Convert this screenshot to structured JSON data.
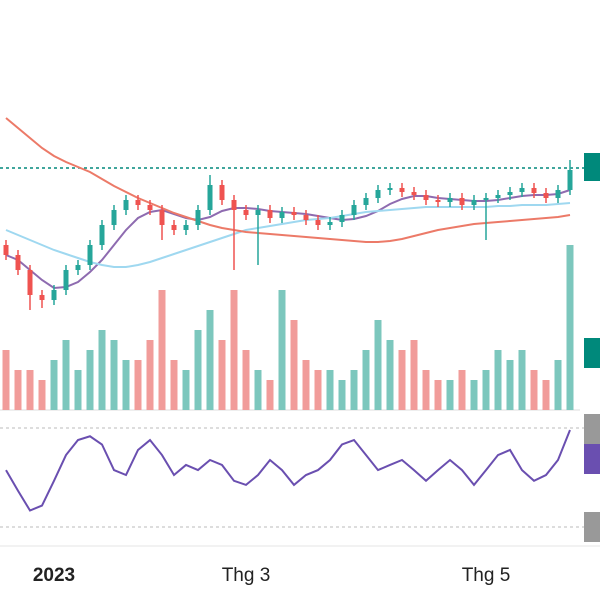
{
  "chart_data": {
    "type": "candlestick",
    "categories": [
      null,
      null,
      null,
      null,
      "2023",
      null,
      null,
      null,
      null,
      null,
      null,
      null,
      null,
      null,
      null,
      null,
      null,
      null,
      null,
      null,
      "Thg 3",
      null,
      null,
      null,
      null,
      null,
      null,
      null,
      null,
      null,
      null,
      null,
      null,
      null,
      null,
      null,
      null,
      null,
      null,
      null,
      "Thg 5",
      null,
      null,
      null,
      null,
      null,
      null,
      null
    ],
    "open": [
      15.5,
      14.5,
      13,
      10.5,
      10,
      11,
      13,
      13.5,
      15.5,
      17.5,
      19,
      20,
      19.5,
      19,
      17.5,
      17,
      17.5,
      19,
      21.5,
      20,
      19,
      18.5,
      19,
      18.2,
      18.8,
      18.5,
      18,
      17.5,
      17.8,
      18.5,
      19.5,
      20.2,
      21,
      21.2,
      20.8,
      20.5,
      20,
      19.8,
      20.2,
      19.5,
      20,
      20.2,
      20.5,
      20.8,
      21.2,
      20.7,
      20.2,
      21
    ],
    "high": [
      16,
      15,
      13.5,
      11,
      11.5,
      13.5,
      14,
      16,
      18,
      19.5,
      20.5,
      20.5,
      20,
      19.5,
      18,
      18,
      19.5,
      22.5,
      22,
      20.5,
      19.5,
      19.5,
      19.5,
      19.3,
      19.3,
      19,
      18.5,
      18.3,
      19,
      20,
      20.7,
      21.5,
      21.7,
      21.7,
      21.3,
      21,
      20.5,
      20.7,
      20.7,
      20.5,
      20.7,
      21,
      21.3,
      21.7,
      21.7,
      21.2,
      21.5,
      24
    ],
    "low": [
      14,
      12.5,
      9,
      9.2,
      9.5,
      10.5,
      12.5,
      13,
      15,
      17,
      18.5,
      19,
      18.5,
      16,
      16.5,
      16.5,
      17,
      18.5,
      19.5,
      13,
      18,
      13.5,
      17.7,
      17.7,
      18,
      17.5,
      17,
      17,
      17.3,
      18,
      19,
      19.7,
      20.5,
      20.3,
      20,
      19.5,
      19.3,
      19.3,
      19,
      19,
      16,
      19.7,
      20,
      20.3,
      20.2,
      19.7,
      19.7,
      20.5
    ],
    "close": [
      14.5,
      13,
      10.5,
      10,
      11,
      13,
      13.5,
      15.5,
      17.5,
      19,
      20,
      19.5,
      19,
      17.5,
      17,
      17.5,
      19,
      21.5,
      20,
      19,
      18.5,
      19,
      18.2,
      18.8,
      18.5,
      18,
      17.5,
      17.8,
      18.5,
      19.5,
      20.2,
      21,
      21.2,
      20.8,
      20.5,
      20,
      19.8,
      20.2,
      19.5,
      20,
      20.2,
      20.5,
      20.8,
      21.2,
      20.7,
      20.2,
      21,
      23
    ],
    "up_color": "#26a69a",
    "down_color": "#ef5350",
    "ylim": [
      0,
      34
    ],
    "price_line": 23.2,
    "price_line_color": "#00897b",
    "series": [
      {
        "color": "#8e6bb0",
        "values": [
          14.5,
          14,
          13,
          12,
          11.2,
          11.3,
          11.8,
          12.8,
          14,
          15.5,
          17,
          18.2,
          18.8,
          19,
          18.6,
          18.2,
          18,
          18.3,
          18.9,
          19.2,
          19.2,
          19.1,
          18.9,
          18.8,
          18.7,
          18.6,
          18.4,
          18.2,
          18,
          18.1,
          18.4,
          18.9,
          19.6,
          20.1,
          20.4,
          20.4,
          20.2,
          20.1,
          20,
          19.9,
          19.9,
          20,
          20.2,
          20.4,
          20.5,
          20.5,
          20.6,
          21
        ]
      },
      {
        "color": "#9fd8f0",
        "values": [
          17,
          16.5,
          16,
          15.5,
          15,
          14.6,
          14.2,
          13.8,
          13.5,
          13.3,
          13.3,
          13.5,
          13.8,
          14.2,
          14.6,
          15,
          15.4,
          15.8,
          16.2,
          16.6,
          17,
          17.2,
          17.4,
          17.6,
          17.8,
          18,
          18.1,
          18.2,
          18.4,
          18.6,
          18.8,
          18.9,
          19,
          19.1,
          19.2,
          19.3,
          19.3,
          19.3,
          19.3,
          19.3,
          19.3,
          19.4,
          19.4,
          19.5,
          19.5,
          19.5,
          19.6,
          19.7
        ]
      },
      {
        "color": "#ec7a68",
        "values": [
          28.2,
          27.2,
          26.2,
          25.2,
          24.4,
          23.8,
          23.3,
          22.8,
          22.1,
          21.4,
          20.8,
          20.2,
          19.7,
          19.2,
          18.7,
          18.3,
          17.9,
          17.5,
          17.2,
          17,
          16.8,
          16.7,
          16.6,
          16.5,
          16.4,
          16.3,
          16.2,
          16.1,
          16,
          15.9,
          15.8,
          15.8,
          15.9,
          16.1,
          16.4,
          16.7,
          17,
          17.2,
          17.4,
          17.6,
          17.7,
          17.8,
          17.9,
          18,
          18.1,
          18.2,
          18.3,
          18.5
        ]
      }
    ],
    "volume": [
      6,
      4,
      4,
      3,
      5,
      7,
      4,
      6,
      8,
      7,
      5,
      5,
      7,
      12,
      5,
      4,
      8,
      10,
      7,
      12,
      6,
      4,
      3,
      12,
      9,
      5,
      4,
      4,
      3,
      4,
      6,
      9,
      7,
      6,
      7,
      4,
      3,
      3,
      4,
      3,
      4,
      6,
      5,
      6,
      4,
      3,
      5,
      16.5
    ],
    "volume_ylim": [
      0,
      18
    ],
    "rsi": [
      54.5,
      42,
      30,
      33,
      48,
      63.6,
      72.7,
      75,
      70,
      54.5,
      51.5,
      66.7,
      72.7,
      63.6,
      51.5,
      57.6,
      54.5,
      60.6,
      57.6,
      48,
      45.5,
      51.5,
      60.6,
      54.5,
      45.5,
      51.5,
      54.5,
      60.6,
      70,
      72.7,
      63.6,
      54.5,
      57.6,
      60.6,
      54.5,
      48,
      54.5,
      60.6,
      54.5,
      45.5,
      54.5,
      63.6,
      66.7,
      54.5,
      48,
      51.5,
      60.6,
      78.8
    ],
    "rsi_color": "#6a4fb0",
    "rsi_ylim": [
      20,
      80
    ],
    "rsi_levels": [
      80,
      20
    ]
  }
}
